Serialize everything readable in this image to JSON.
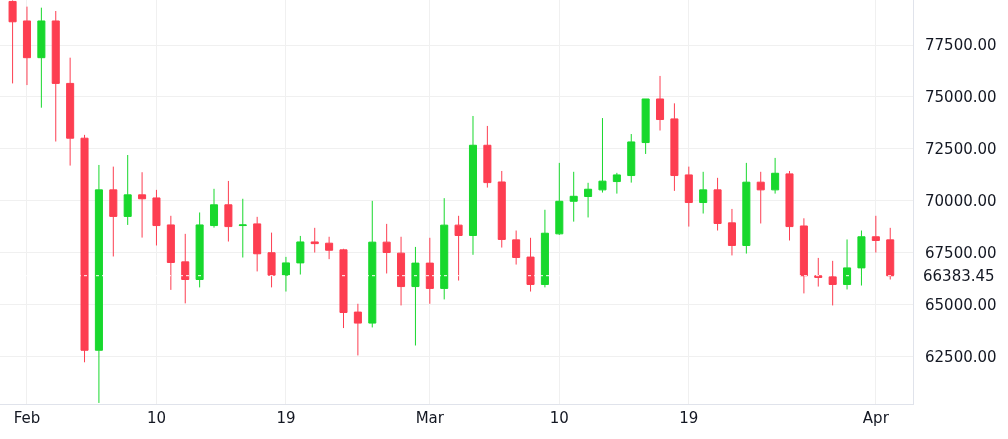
{
  "chart_data": {
    "type": "candlestick",
    "x": [
      "--01-31",
      "--02-01",
      "--02-02",
      "--02-03",
      "--02-04",
      "--02-05",
      "--02-06",
      "--02-07",
      "--02-08",
      "--02-09",
      "--02-10",
      "--02-11",
      "--02-12",
      "--02-13",
      "--02-14",
      "--02-15",
      "--02-16",
      "--02-17",
      "--02-18",
      "--02-19",
      "--02-20",
      "--02-21",
      "--02-22",
      "--02-23",
      "--02-24",
      "--02-25",
      "--02-26",
      "--02-27",
      "--02-28",
      "--03-01",
      "--03-02",
      "--03-03",
      "--03-04",
      "--03-05",
      "--03-06",
      "--03-07",
      "--03-08",
      "--03-09",
      "--03-10",
      "--03-11",
      "--03-12",
      "--03-13",
      "--03-14",
      "--03-15",
      "--03-16",
      "--03-17",
      "--03-18",
      "--03-19",
      "--03-20",
      "--03-21",
      "--03-22",
      "--03-23",
      "--03-24",
      "--03-25",
      "--03-26",
      "--03-27",
      "--03-28",
      "--03-29",
      "--03-30",
      "--03-31",
      "--04-01",
      "--04-02"
    ],
    "ohlc": [
      [
        79600,
        79650,
        75650,
        78620
      ],
      [
        78660,
        79350,
        75570,
        76890
      ],
      [
        76890,
        79300,
        74480,
        78660
      ],
      [
        78660,
        79140,
        72850,
        75650
      ],
      [
        75650,
        76890,
        71690,
        73010
      ],
      [
        73010,
        73170,
        62210,
        62790
      ],
      [
        62790,
        71720,
        60250,
        70520
      ],
      [
        70520,
        71640,
        67310,
        69240
      ],
      [
        69240,
        72200,
        68830,
        70280
      ],
      [
        70280,
        71370,
        68220,
        70090
      ],
      [
        70130,
        70520,
        67840,
        68800
      ],
      [
        68830,
        69270,
        65700,
        67020
      ],
      [
        67050,
        68400,
        65050,
        66200
      ],
      [
        66200,
        69430,
        65820,
        68830
      ],
      [
        68800,
        70570,
        68700,
        69800
      ],
      [
        69800,
        70950,
        68030,
        68750
      ],
      [
        68800,
        70090,
        67260,
        68830
      ],
      [
        68880,
        69220,
        66590,
        67440
      ],
      [
        67490,
        68460,
        65820,
        66410
      ],
      [
        66410,
        67290,
        65620,
        67000
      ],
      [
        67000,
        68300,
        66440,
        68010
      ],
      [
        68010,
        68690,
        67500,
        67930
      ],
      [
        67950,
        68260,
        67180,
        67610
      ],
      [
        67630,
        67680,
        63860,
        64610
      ],
      [
        64630,
        65030,
        62540,
        64100
      ],
      [
        64100,
        69990,
        63890,
        68000
      ],
      [
        68000,
        68880,
        66490,
        67500
      ],
      [
        67470,
        68260,
        64950,
        65860
      ],
      [
        65860,
        67770,
        63020,
        66990
      ],
      [
        66990,
        68210,
        65030,
        65770
      ],
      [
        65770,
        70120,
        65240,
        68820
      ],
      [
        68820,
        69270,
        66150,
        68320
      ],
      [
        68320,
        74080,
        67390,
        72670
      ],
      [
        72670,
        73600,
        70630,
        70870
      ],
      [
        70900,
        71430,
        67740,
        68130
      ],
      [
        68110,
        68560,
        66920,
        67260
      ],
      [
        67280,
        68210,
        65620,
        65960
      ],
      [
        65960,
        69560,
        65820,
        68430
      ],
      [
        68400,
        71820,
        68350,
        69970
      ],
      [
        69970,
        71390,
        68990,
        70210
      ],
      [
        70200,
        70860,
        69190,
        70550
      ],
      [
        70520,
        73980,
        70390,
        70940
      ],
      [
        70920,
        71340,
        70340,
        71240
      ],
      [
        71210,
        73210,
        70870,
        72830
      ],
      [
        72800,
        74900,
        72250,
        74900
      ],
      [
        74900,
        76010,
        73380,
        73910
      ],
      [
        73940,
        74690,
        70470,
        71210
      ],
      [
        71240,
        71640,
        68750,
        69910
      ],
      [
        69910,
        71390,
        69380,
        70520
      ],
      [
        70520,
        71100,
        68560,
        68900
      ],
      [
        68930,
        69600,
        67360,
        67840
      ],
      [
        67840,
        71820,
        67450,
        70890
      ],
      [
        70890,
        71390,
        68900,
        70520
      ],
      [
        70520,
        72060,
        70340,
        71320
      ],
      [
        71290,
        71430,
        68080,
        68750
      ],
      [
        68780,
        69150,
        65530,
        66380
      ],
      [
        66380,
        67240,
        65860,
        66300
      ],
      [
        66330,
        67100,
        64950,
        65960
      ],
      [
        65960,
        68130,
        65720,
        66760
      ],
      [
        66760,
        68560,
        65910,
        68260
      ],
      [
        68260,
        69270,
        67500,
        68080
      ],
      [
        68110,
        68690,
        66200,
        66380
      ]
    ],
    "colors": [
      "#fd3e51",
      "#fd3e51",
      "#18d82d",
      "#fd3e51",
      "#fd3e51",
      "#fd3e51",
      "#18d82d",
      "#fd3e51",
      "#18d82d",
      "#fd3e51",
      "#fd3e51",
      "#fd3e51",
      "#fd3e51",
      "#18d82d",
      "#18d82d",
      "#fd3e51",
      "#18d82d",
      "#fd3e51",
      "#fd3e51",
      "#18d82d",
      "#18d82d",
      "#fd3e51",
      "#fd3e51",
      "#fd3e51",
      "#fd3e51",
      "#18d82d",
      "#fd3e51",
      "#fd3e51",
      "#18d82d",
      "#fd3e51",
      "#18d82d",
      "#fd3e51",
      "#18d82d",
      "#fd3e51",
      "#fd3e51",
      "#fd3e51",
      "#fd3e51",
      "#18d82d",
      "#18d82d",
      "#18d82d",
      "#18d82d",
      "#18d82d",
      "#18d82d",
      "#18d82d",
      "#18d82d",
      "#fd3e51",
      "#fd3e51",
      "#fd3e51",
      "#18d82d",
      "#fd3e51",
      "#fd3e51",
      "#18d82d",
      "#fd3e51",
      "#18d82d",
      "#fd3e51",
      "#fd3e51",
      "#fd3e51",
      "#fd3e51",
      "#18d82d",
      "#18d82d",
      "#fd3e51",
      "#fd3e51"
    ],
    "xlim": [
      "--01-30T03:00",
      "--04-03T14:00"
    ],
    "xticks": [
      {
        "value": "--02-01",
        "label": "Feb"
      },
      {
        "value": "--02-10",
        "label": "10"
      },
      {
        "value": "--02-19",
        "label": "19"
      },
      {
        "value": "--03-01",
        "label": "Mar"
      },
      {
        "value": "--03-10",
        "label": "10"
      },
      {
        "value": "--03-19",
        "label": "19"
      },
      {
        "value": "--04-01",
        "label": "Apr"
      }
    ],
    "ylim": [
      60200,
      79670
    ],
    "yticks": [
      {
        "value": 62500,
        "label": "62500.00"
      },
      {
        "value": 65000,
        "label": "65000.00"
      },
      {
        "value": 67500,
        "label": "67500.00"
      },
      {
        "value": 70000,
        "label": "70000.00"
      },
      {
        "value": 72500,
        "label": "72500.00"
      },
      {
        "value": 75000,
        "label": "75000.00"
      },
      {
        "value": 77500,
        "label": "77500.00"
      }
    ],
    "ref_lines": [
      {
        "axis": "y",
        "value": 66383.45,
        "label": "66383.45",
        "color": "#ffffff",
        "line_style": "dotted"
      }
    ],
    "grid": true
  }
}
